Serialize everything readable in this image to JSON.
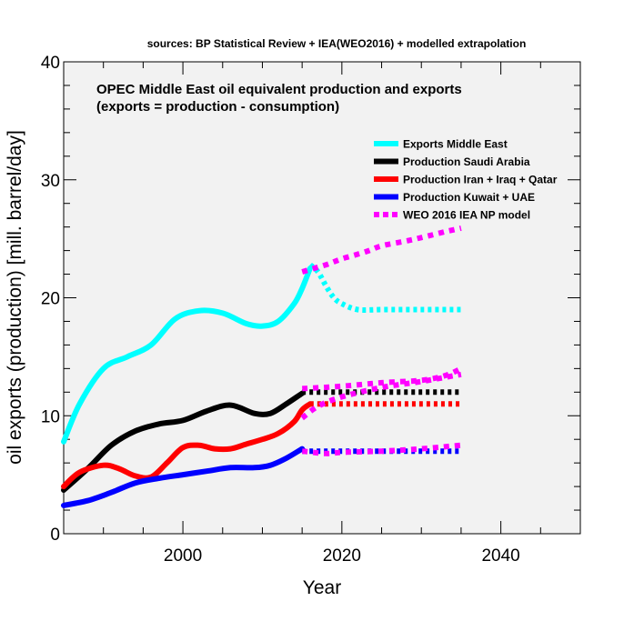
{
  "chart_data": {
    "type": "line",
    "subtitle": "sources: BP Statistical Review + IEA(WEO2016) + modelled extrapolation",
    "title_lines": [
      "OPEC Middle East oil equivalent production and exports",
      "(exports = production - consumption)"
    ],
    "xlabel": "Year",
    "ylabel": "oil exports (production) [mill. barrel/day]",
    "xlim": [
      1985,
      2050
    ],
    "ylim": [
      0,
      40
    ],
    "x_ticks": [
      2000,
      2020,
      2040
    ],
    "y_ticks": [
      0,
      10,
      20,
      30,
      40
    ],
    "grid": false,
    "legend_position": "top-right",
    "colors": {
      "plot_background": "#f2f2f2",
      "exports": "#00ffff",
      "saudi": "#000000",
      "iran_iraq_qatar": "#ff0000",
      "kuwait_uae": "#0000ff",
      "weo_model": "#ff00ff"
    },
    "series": [
      {
        "name": "Exports Middle East",
        "color_key": "exports",
        "style": "solid",
        "x": [
          1985,
          1987,
          1990,
          1993,
          1996,
          1999,
          2002,
          2005,
          2008,
          2010,
          2012,
          2014,
          2015,
          2016
        ],
        "values": [
          7.8,
          11,
          14,
          15,
          16,
          18.2,
          18.9,
          18.7,
          17.8,
          17.6,
          18,
          19.5,
          20.8,
          22.5
        ]
      },
      {
        "name": "Exports Middle East (extrapolation)",
        "color_key": "exports",
        "style": "dotted",
        "legend": false,
        "x": [
          2016,
          2017,
          2018,
          2019,
          2020,
          2022,
          2025,
          2030,
          2035
        ],
        "values": [
          22.8,
          22.2,
          21,
          20,
          19.5,
          19,
          19,
          19,
          19
        ]
      },
      {
        "name": "Production Saudi Arabia",
        "color_key": "saudi",
        "style": "solid",
        "x": [
          1985,
          1988,
          1991,
          1994,
          1997,
          2000,
          2003,
          2006,
          2009,
          2011,
          2013,
          2015
        ],
        "values": [
          3.7,
          5.5,
          7.5,
          8.7,
          9.3,
          9.6,
          10.4,
          10.9,
          10.2,
          10.2,
          11,
          11.9
        ]
      },
      {
        "name": "Production Saudi Arabia (extrapolation)",
        "color_key": "saudi",
        "style": "dotted",
        "legend": false,
        "x": [
          2015,
          2020,
          2025,
          2030,
          2035
        ],
        "values": [
          12,
          12,
          12,
          12,
          12
        ]
      },
      {
        "name": "Production Iran + Iraq + Qatar",
        "color_key": "iran_iraq_qatar",
        "style": "solid",
        "x": [
          1985,
          1987,
          1990,
          1992,
          1994,
          1996,
          1998,
          2000,
          2002,
          2004,
          2006,
          2008,
          2010,
          2012,
          2014,
          2015,
          2016
        ],
        "values": [
          4.0,
          5.2,
          5.8,
          5.5,
          4.9,
          4.8,
          6.0,
          7.3,
          7.5,
          7.2,
          7.2,
          7.6,
          8.0,
          8.5,
          9.5,
          10.5,
          11.0
        ]
      },
      {
        "name": "Production Iran + Iraq + Qatar (extrapolation)",
        "color_key": "iran_iraq_qatar",
        "style": "dotted",
        "legend": false,
        "x": [
          2016,
          2020,
          2025,
          2030,
          2035
        ],
        "values": [
          11,
          11,
          11,
          11,
          11
        ]
      },
      {
        "name": "Production Kuwait + UAE",
        "color_key": "kuwait_uae",
        "style": "solid",
        "x": [
          1985,
          1988,
          1991,
          1994,
          1997,
          2000,
          2003,
          2006,
          2009,
          2011,
          2013,
          2015
        ],
        "values": [
          2.4,
          2.8,
          3.5,
          4.3,
          4.7,
          5.0,
          5.3,
          5.6,
          5.6,
          5.8,
          6.4,
          7.2
        ]
      },
      {
        "name": "Production Kuwait + UAE (extrapolation)",
        "color_key": "kuwait_uae",
        "style": "dotted",
        "legend": false,
        "x": [
          2015,
          2020,
          2025,
          2030,
          2035
        ],
        "values": [
          7,
          7,
          7,
          7,
          7
        ]
      },
      {
        "name": "WEO 2016 IEA NP model",
        "color_key": "weo_model",
        "style": "dotted",
        "x": [
          2015,
          2018,
          2020,
          2023,
          2025,
          2028,
          2030,
          2033,
          2035
        ],
        "values": [
          22.2,
          22.8,
          23.3,
          23.9,
          24.4,
          24.8,
          25.1,
          25.6,
          25.9
        ]
      },
      {
        "name": "WEO model Saudi Arabia",
        "color_key": "weo_model",
        "style": "dotted",
        "legend": false,
        "x": [
          2015,
          2020,
          2025,
          2030,
          2033,
          2035
        ],
        "values": [
          12.3,
          12.5,
          12.8,
          13.0,
          13.4,
          14.0
        ]
      },
      {
        "name": "WEO model Iran + Iraq + Qatar",
        "color_key": "weo_model",
        "style": "dotted",
        "legend": false,
        "x": [
          2015,
          2017,
          2020,
          2025,
          2030,
          2035
        ],
        "values": [
          9.8,
          10.8,
          11.6,
          12.4,
          12.9,
          13.5
        ]
      },
      {
        "name": "WEO model Kuwait + UAE",
        "color_key": "weo_model",
        "style": "dotted",
        "legend": false,
        "x": [
          2015,
          2018,
          2020,
          2025,
          2030,
          2035
        ],
        "values": [
          7.0,
          6.8,
          6.9,
          7.0,
          7.2,
          7.5
        ]
      }
    ]
  }
}
